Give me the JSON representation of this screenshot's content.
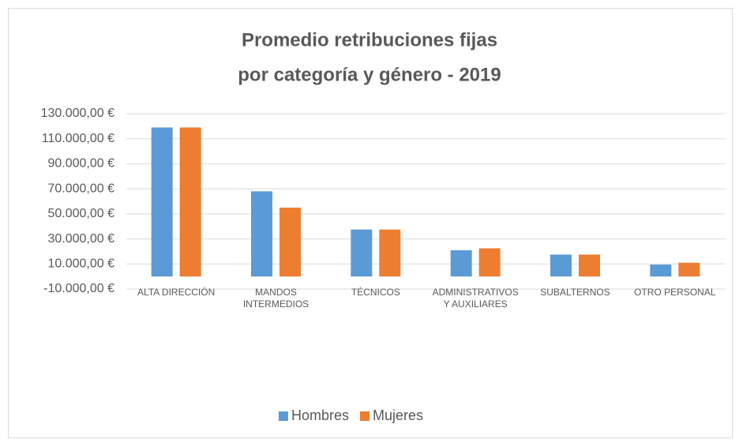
{
  "chart_data": {
    "type": "bar",
    "title": [
      "Promedio retribuciones fijas",
      "por categoría y género - 2019"
    ],
    "categories": [
      "ALTA DIRECCIÓN",
      "MANDOS INTERMEDIOS",
      "TÉCNICOS",
      "ADMINISTRATIVOS Y AUXILIARES",
      "SUBALTERNOS",
      "OTRO PERSONAL"
    ],
    "series": [
      {
        "name": "Hombres",
        "color": "#5b9bd5",
        "values": [
          119000,
          68000,
          37500,
          21000,
          17500,
          9500
        ]
      },
      {
        "name": "Mujeres",
        "color": "#ed7d31",
        "values": [
          119000,
          55000,
          37500,
          22500,
          17500,
          11000
        ]
      }
    ],
    "ylim": [
      -10000,
      130000
    ],
    "yticks": [
      {
        "value": -10000,
        "label": "-10.000,00 €"
      },
      {
        "value": 10000,
        "label": "10.000,00 €"
      },
      {
        "value": 30000,
        "label": "30.000,00 €"
      },
      {
        "value": 50000,
        "label": "50.000,00 €"
      },
      {
        "value": 70000,
        "label": "70.000,00 €"
      },
      {
        "value": 90000,
        "label": "90.000,00 €"
      },
      {
        "value": 110000,
        "label": "110.000,00 €"
      },
      {
        "value": 130000,
        "label": "130.000,00 €"
      }
    ],
    "grid": true,
    "legend": "bottom"
  }
}
